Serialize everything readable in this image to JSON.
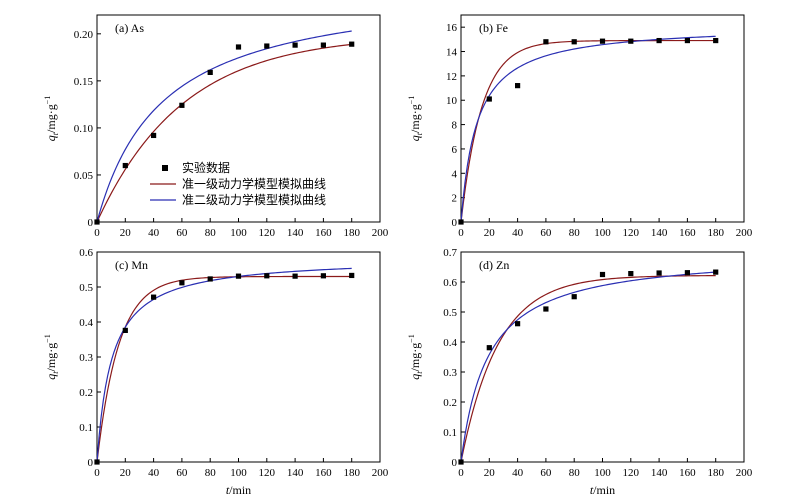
{
  "figure": {
    "ylabel": "qt/mg·g⁻¹",
    "xlabel": "t/min",
    "legend": {
      "items": [
        {
          "label": "实验数据",
          "kind": "marker",
          "color": "#000000"
        },
        {
          "label": "准一级动力学模型模拟曲线",
          "kind": "line",
          "color": "#8b1a1a"
        },
        {
          "label": "准二级动力学模型模拟曲线",
          "kind": "line",
          "color": "#2a2fb3"
        }
      ]
    }
  },
  "chart_data": [
    {
      "type": "scatter",
      "title": "(a) As",
      "xlabel": "t/min",
      "ylabel": "qt/mg·g⁻¹",
      "xlim": [
        0,
        200
      ],
      "ylim": [
        0,
        0.22
      ],
      "xticks": [
        0,
        20,
        40,
        60,
        80,
        100,
        120,
        140,
        160,
        180,
        200
      ],
      "yticks": [
        0,
        0.05,
        0.1,
        0.15,
        0.2
      ],
      "ytick_labels": [
        "0",
        "0.05",
        "0.10",
        "0.15",
        "0.20"
      ],
      "x": [
        0,
        20,
        40,
        60,
        80,
        100,
        120,
        140,
        160,
        180
      ],
      "series": [
        {
          "name": "实验数据",
          "kind": "scatter",
          "values": [
            0,
            0.06,
            0.092,
            0.124,
            0.159,
            0.186,
            0.187,
            0.188,
            0.188,
            0.189
          ]
        },
        {
          "name": "准一级动力学模型模拟曲线",
          "kind": "pfo",
          "qe": 0.199,
          "k": 0.0165
        },
        {
          "name": "准二级动力学模型模拟曲线",
          "kind": "pso",
          "qe": 0.255,
          "k": 0.085
        }
      ]
    },
    {
      "type": "scatter",
      "title": "(b) Fe",
      "xlabel": "t/min",
      "ylabel": "qt/mg·g⁻¹",
      "xlim": [
        0,
        200
      ],
      "ylim": [
        0,
        17
      ],
      "xticks": [
        0,
        20,
        40,
        60,
        80,
        100,
        120,
        140,
        160,
        180,
        200
      ],
      "yticks": [
        0,
        2,
        4,
        6,
        8,
        10,
        12,
        14,
        16
      ],
      "ytick_labels": [
        "0",
        "2",
        "4",
        "6",
        "8",
        "10",
        "12",
        "14",
        "16"
      ],
      "x": [
        0,
        20,
        40,
        60,
        80,
        100,
        120,
        140,
        160,
        180
      ],
      "series": [
        {
          "name": "实验数据",
          "kind": "scatter",
          "values": [
            0,
            10.1,
            11.2,
            14.8,
            14.8,
            14.85,
            14.85,
            14.9,
            14.9,
            14.9
          ]
        },
        {
          "name": "准一级动力学模型模拟曲线",
          "kind": "pfo",
          "qe": 14.9,
          "k": 0.068
        },
        {
          "name": "准二级动力学模型模拟曲线",
          "kind": "pso",
          "qe": 16.2,
          "k": 0.0055
        }
      ]
    },
    {
      "type": "scatter",
      "title": "(c) Mn",
      "xlabel": "t/min",
      "ylabel": "qt/mg·g⁻¹",
      "xlim": [
        0,
        200
      ],
      "ylim": [
        0,
        0.6
      ],
      "xticks": [
        0,
        20,
        40,
        60,
        80,
        100,
        120,
        140,
        160,
        180,
        200
      ],
      "yticks": [
        0,
        0.1,
        0.2,
        0.3,
        0.4,
        0.5,
        0.6
      ],
      "ytick_labels": [
        "0",
        "0.1",
        "0.2",
        "0.3",
        "0.4",
        "0.5",
        "0.6"
      ],
      "x": [
        0,
        20,
        40,
        60,
        80,
        100,
        120,
        140,
        160,
        180
      ],
      "series": [
        {
          "name": "实验数据",
          "kind": "scatter",
          "values": [
            0,
            0.376,
            0.471,
            0.512,
            0.523,
            0.531,
            0.532,
            0.531,
            0.532,
            0.533
          ]
        },
        {
          "name": "准一级动力学模型模拟曲线",
          "kind": "pfo",
          "qe": 0.53,
          "k": 0.065
        },
        {
          "name": "准二级动力学模型模拟曲线",
          "kind": "pso",
          "qe": 0.585,
          "k": 0.165
        }
      ]
    },
    {
      "type": "scatter",
      "title": "(d) Zn",
      "xlabel": "t/min",
      "ylabel": "qt/mg·g⁻¹",
      "xlim": [
        0,
        200
      ],
      "ylim": [
        0,
        0.7
      ],
      "xticks": [
        0,
        20,
        40,
        60,
        80,
        100,
        120,
        140,
        160,
        180,
        200
      ],
      "yticks": [
        0,
        0.1,
        0.2,
        0.3,
        0.4,
        0.5,
        0.6,
        0.7
      ],
      "ytick_labels": [
        "0",
        "0.1",
        "0.2",
        "0.3",
        "0.4",
        "0.5",
        "0.6",
        "0.7"
      ],
      "x": [
        0,
        20,
        40,
        60,
        80,
        100,
        120,
        140,
        160,
        180
      ],
      "series": [
        {
          "name": "实验数据",
          "kind": "scatter",
          "values": [
            0,
            0.381,
            0.461,
            0.51,
            0.551,
            0.625,
            0.628,
            0.63,
            0.631,
            0.633
          ]
        },
        {
          "name": "准一级动力学模型模拟曲线",
          "kind": "pfo",
          "qe": 0.622,
          "k": 0.038
        },
        {
          "name": "准二级动力学模型模拟曲线",
          "kind": "pso",
          "qe": 0.7,
          "k": 0.075
        }
      ]
    }
  ]
}
